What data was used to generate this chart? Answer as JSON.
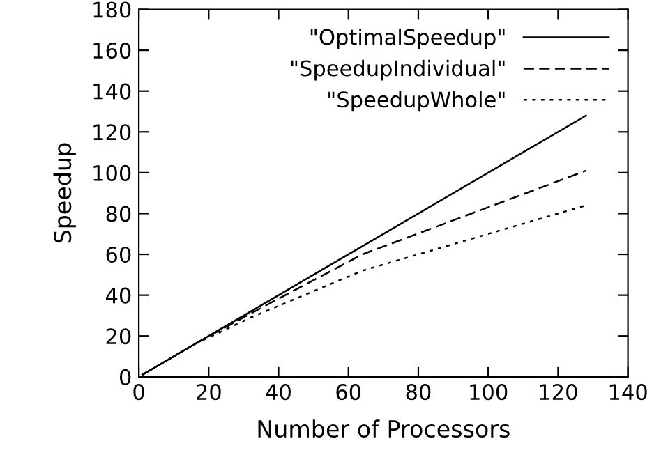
{
  "chart_data": {
    "type": "line",
    "xlabel": "Number of Processors",
    "ylabel": "Speedup",
    "xlim": [
      0,
      140
    ],
    "xticks": [
      0,
      20,
      40,
      60,
      80,
      100,
      120,
      140
    ],
    "ylim": [
      0,
      180
    ],
    "yticks": [
      0,
      20,
      40,
      60,
      80,
      100,
      120,
      140,
      160,
      180
    ],
    "grid": false,
    "legend": "top right",
    "series": [
      {
        "name": "\"OptimalSpeedup\"",
        "color": "#000000",
        "line_style": "solid",
        "x": [
          1,
          2,
          4,
          8,
          16,
          32,
          64,
          128
        ],
        "values": [
          1,
          2,
          4,
          8,
          16,
          32,
          64,
          128
        ]
      },
      {
        "name": "\"SpeedupIndividual\"",
        "color": "#000000",
        "line_style": "dashed",
        "x": [
          1,
          2,
          4,
          8,
          16,
          32,
          64,
          128
        ],
        "values": [
          1,
          2,
          4,
          8,
          16,
          31,
          60,
          101
        ]
      },
      {
        "name": "\"SpeedupWhole\"",
        "color": "#000000",
        "line_style": "dotted",
        "x": [
          1,
          2,
          4,
          8,
          16,
          32,
          64,
          128
        ],
        "values": [
          1,
          2,
          4,
          8,
          16,
          29,
          52,
          84
        ]
      }
    ]
  }
}
